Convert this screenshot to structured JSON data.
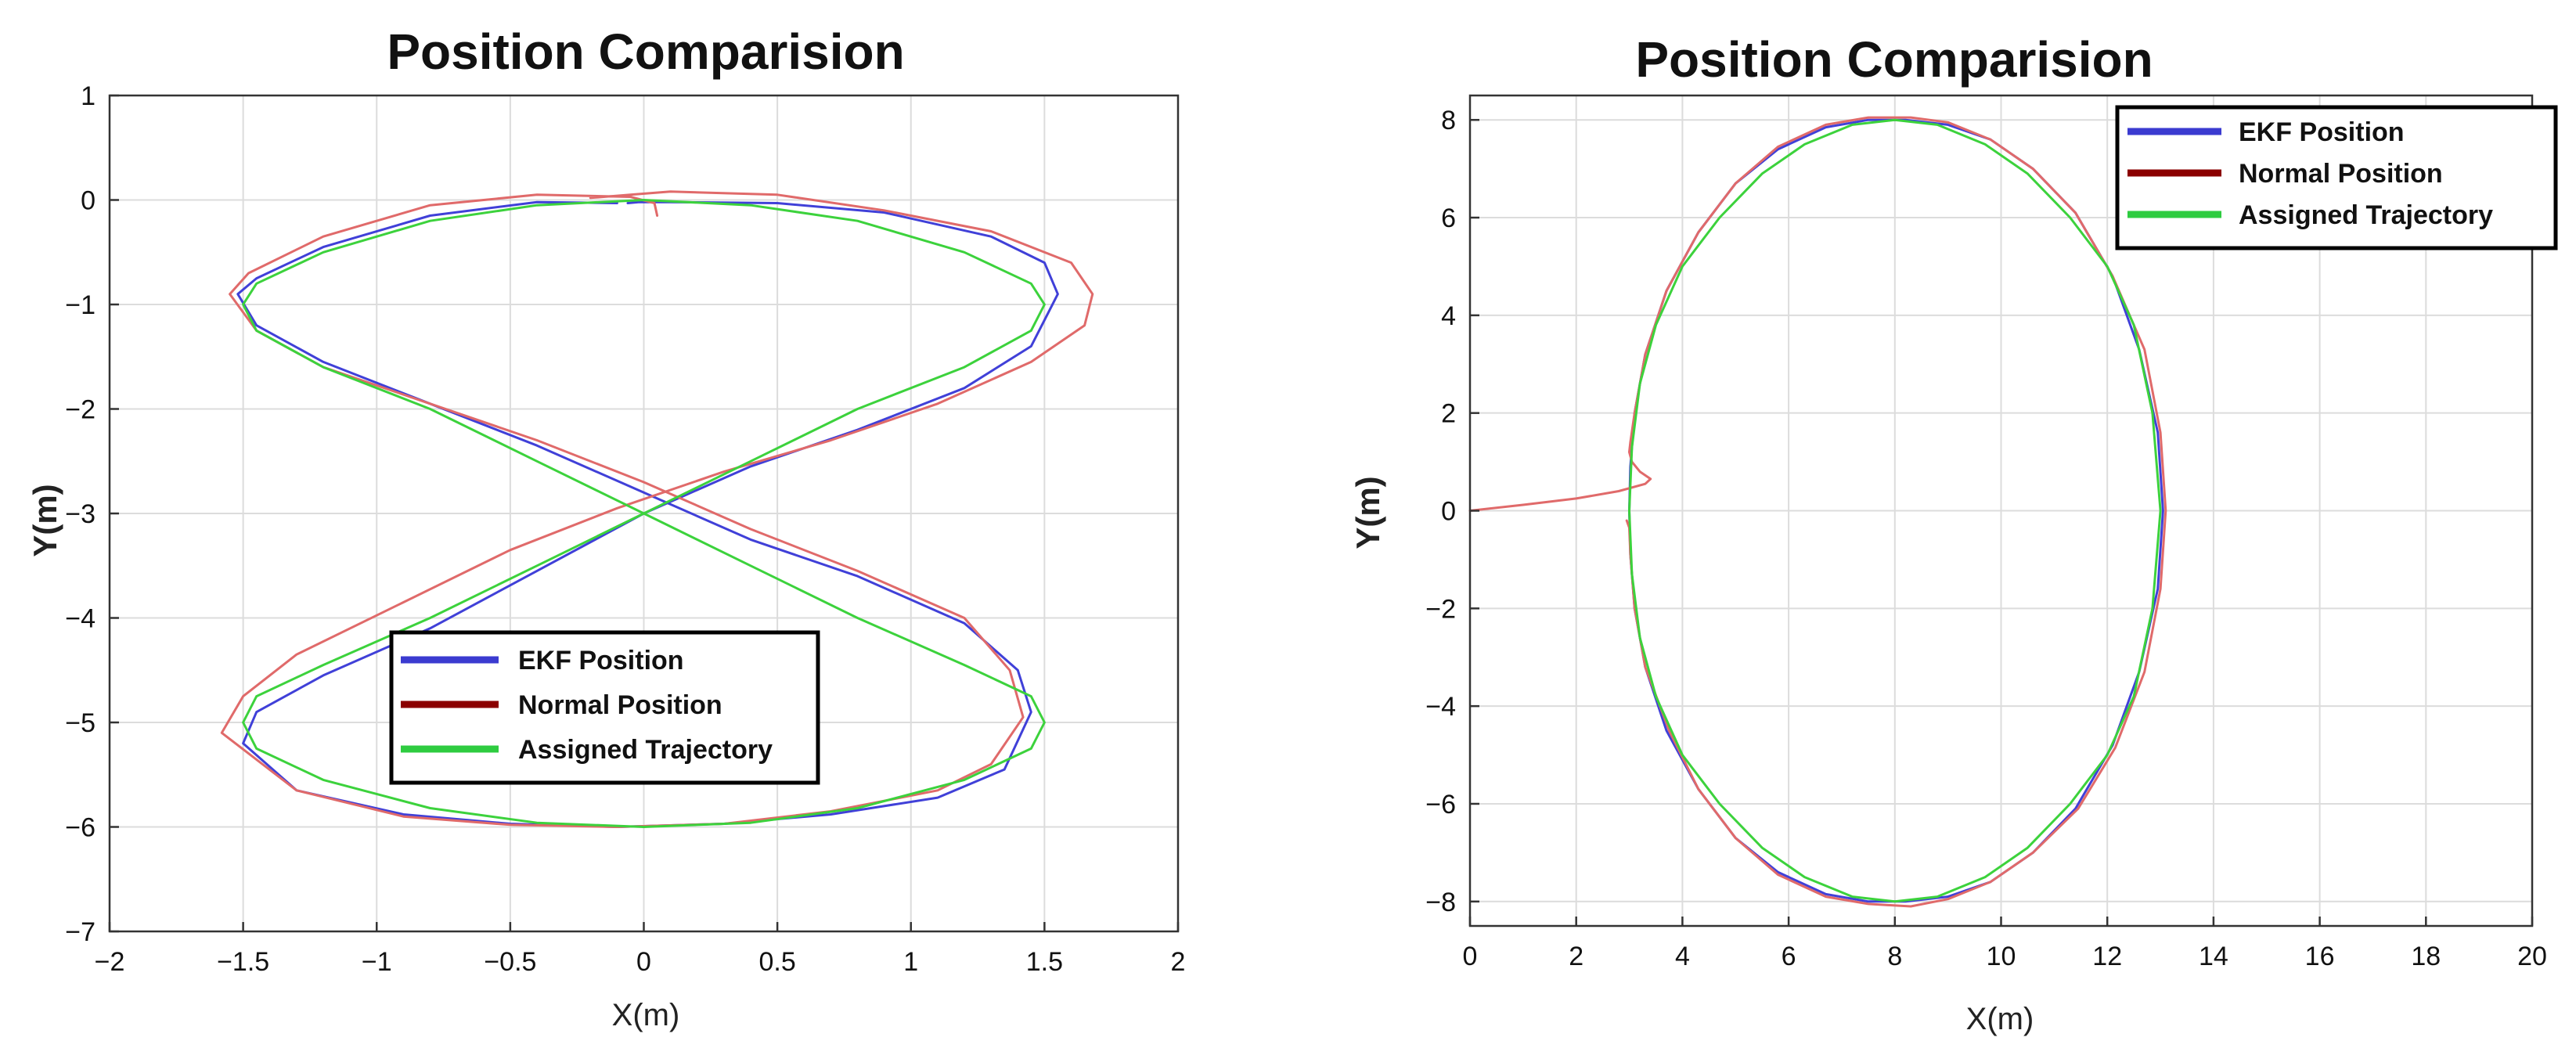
{
  "chart_data": [
    {
      "type": "line",
      "title": "Position Comparision",
      "xlabel": "X(m)",
      "ylabel": "Y(m)",
      "xlim": [
        -2,
        2
      ],
      "ylim": [
        -7,
        1
      ],
      "xticks": [
        -2,
        -1.5,
        -1,
        -0.5,
        0,
        0.5,
        1,
        1.5,
        2
      ],
      "xtick_labels": [
        "−2",
        "−1.5",
        "−1",
        "−0.5",
        "0",
        "0.5",
        "1",
        "1.5",
        "2"
      ],
      "yticks": [
        1,
        0,
        -1,
        -2,
        -3,
        -4,
        -5,
        -6,
        -7
      ],
      "ytick_labels": [
        "1",
        "0",
        "−1",
        "−2",
        "−3",
        "−4",
        "−5",
        "−6",
        "−7"
      ],
      "grid": true,
      "legend_position": "lower-center",
      "series": [
        {
          "name": "EKF Position",
          "color": "#4040d8",
          "x": [
            -0.1,
            -0.4,
            -0.8,
            -1.2,
            -1.45,
            -1.52,
            -1.45,
            -1.2,
            -0.8,
            -0.4,
            0.0,
            0.4,
            0.8,
            1.2,
            1.4,
            1.45,
            1.35,
            1.1,
            0.7,
            0.3,
            -0.1,
            -0.5,
            -0.9,
            -1.3,
            -1.5,
            -1.45,
            -1.2,
            -0.8,
            -0.4,
            0.0,
            0.4,
            0.8,
            1.2,
            1.45,
            1.55,
            1.5,
            1.3,
            0.9,
            0.5,
            0.1,
            -0.02,
            -0.06
          ],
          "y": [
            -0.03,
            -0.02,
            -0.15,
            -0.45,
            -0.75,
            -0.9,
            -1.2,
            -1.55,
            -1.95,
            -2.35,
            -2.8,
            -3.25,
            -3.6,
            -4.05,
            -4.5,
            -4.9,
            -5.45,
            -5.72,
            -5.88,
            -5.97,
            -6.0,
            -5.97,
            -5.88,
            -5.65,
            -5.2,
            -4.9,
            -4.55,
            -4.1,
            -3.55,
            -3.0,
            -2.55,
            -2.2,
            -1.8,
            -1.4,
            -0.9,
            -0.6,
            -0.35,
            -0.12,
            -0.03,
            -0.02,
            -0.02,
            -0.03
          ]
        },
        {
          "name": "Normal Position",
          "color": "#e06a6a",
          "x": [
            0.05,
            0.04,
            -0.05,
            -0.4,
            -0.8,
            -1.2,
            -1.48,
            -1.55,
            -1.45,
            -1.2,
            -0.8,
            -0.4,
            0.0,
            0.4,
            0.8,
            1.2,
            1.37,
            1.42,
            1.3,
            1.1,
            0.7,
            0.3,
            -0.1,
            -0.5,
            -0.9,
            -1.3,
            -1.58,
            -1.5,
            -1.3,
            -0.9,
            -0.5,
            -0.1,
            0.3,
            0.7,
            1.1,
            1.45,
            1.65,
            1.68,
            1.6,
            1.3,
            0.9,
            0.5,
            0.1,
            -0.05,
            -0.2
          ],
          "y": [
            -0.15,
            -0.03,
            0.03,
            0.05,
            -0.05,
            -0.35,
            -0.7,
            -0.9,
            -1.25,
            -1.6,
            -1.95,
            -2.3,
            -2.7,
            -3.15,
            -3.55,
            -4.0,
            -4.5,
            -4.95,
            -5.4,
            -5.65,
            -5.85,
            -5.97,
            -6.0,
            -5.98,
            -5.9,
            -5.65,
            -5.1,
            -4.75,
            -4.35,
            -3.85,
            -3.35,
            -2.95,
            -2.6,
            -2.3,
            -1.95,
            -1.55,
            -1.2,
            -0.9,
            -0.6,
            -0.3,
            -0.1,
            0.05,
            0.08,
            0.05,
            0.02
          ]
        },
        {
          "name": "Assigned Trajectory",
          "color": "#3cd23c",
          "x": [
            0.0,
            -0.4,
            -0.8,
            -1.2,
            -1.45,
            -1.5,
            -1.45,
            -1.2,
            -0.8,
            -0.4,
            0.0,
            0.4,
            0.8,
            1.2,
            1.45,
            1.5,
            1.45,
            1.2,
            0.8,
            0.4,
            0.0,
            -0.4,
            -0.8,
            -1.2,
            -1.45,
            -1.5,
            -1.45,
            -1.2,
            -0.8,
            -0.4,
            0.0,
            0.4,
            0.8,
            1.2,
            1.45,
            1.5,
            1.45,
            1.2,
            0.8,
            0.4,
            0.0
          ],
          "y": [
            -0.0,
            -0.05,
            -0.2,
            -0.5,
            -0.8,
            -1.0,
            -1.25,
            -1.6,
            -2.0,
            -2.5,
            -3.0,
            -3.5,
            -4.0,
            -4.45,
            -4.75,
            -5.0,
            -5.25,
            -5.55,
            -5.82,
            -5.96,
            -6.0,
            -5.96,
            -5.82,
            -5.55,
            -5.25,
            -5.0,
            -4.75,
            -4.45,
            -4.0,
            -3.5,
            -3.0,
            -2.5,
            -2.0,
            -1.6,
            -1.25,
            -1.0,
            -0.8,
            -0.5,
            -0.2,
            -0.05,
            0.0
          ]
        }
      ]
    },
    {
      "type": "line",
      "title": "Position Comparision",
      "xlabel": "X(m)",
      "ylabel": "Y(m)",
      "xlim": [
        0,
        20
      ],
      "ylim": [
        -8.5,
        8.5
      ],
      "xticks": [
        0,
        2,
        4,
        6,
        8,
        10,
        12,
        14,
        16,
        18,
        20
      ],
      "xtick_labels": [
        "0",
        "2",
        "4",
        "6",
        "8",
        "10",
        "12",
        "14",
        "16",
        "18",
        "20"
      ],
      "yticks": [
        8,
        6,
        4,
        2,
        0,
        -2,
        -4,
        -6,
        -8
      ],
      "ytick_labels": [
        "8",
        "6",
        "4",
        "2",
        "0",
        "−2",
        "−4",
        "−6",
        "−8"
      ],
      "grid": true,
      "legend_position": "top-right",
      "series": [
        {
          "name": "EKF Position",
          "color": "#4040d8",
          "x": [
            3.0,
            3.02,
            3.1,
            3.3,
            3.7,
            4.3,
            5.0,
            5.8,
            6.7,
            7.5,
            8.2,
            9.0,
            9.8,
            10.6,
            11.4,
            12.1,
            12.6,
            12.95,
            13.05,
            12.95,
            12.6,
            12.1,
            11.4,
            10.6,
            9.8,
            9.0,
            8.2,
            7.5,
            6.7,
            5.8,
            5.0,
            4.3,
            3.7,
            3.3,
            3.1,
            3.02,
            3.0
          ],
          "y": [
            0.0,
            0.9,
            2.0,
            3.2,
            4.5,
            5.7,
            6.7,
            7.4,
            7.85,
            8.0,
            8.0,
            7.9,
            7.6,
            7.0,
            6.1,
            4.8,
            3.3,
            1.6,
            0.0,
            -1.6,
            -3.3,
            -4.8,
            -6.1,
            -7.0,
            -7.6,
            -7.9,
            -8.0,
            -8.0,
            -7.85,
            -7.4,
            -6.7,
            -5.7,
            -4.5,
            -3.2,
            -2.0,
            -0.9,
            0.0
          ]
        },
        {
          "name": "Normal Position",
          "color": "#e06a6a",
          "x": [
            0.0,
            1.0,
            2.0,
            2.8,
            3.3,
            3.4,
            3.2,
            3.05,
            3.0,
            3.02,
            3.1,
            3.3,
            3.7,
            4.3,
            5.0,
            5.8,
            6.7,
            7.5,
            8.3,
            9.0,
            9.8,
            10.6,
            11.4,
            12.1,
            12.7,
            13.0,
            13.1,
            13.0,
            12.7,
            12.15,
            11.45,
            10.6,
            9.8,
            9.0,
            8.3,
            7.5,
            6.7,
            5.8,
            5.0,
            4.3,
            3.75,
            3.3,
            3.1,
            3.02,
            3.0,
            2.95
          ],
          "y": [
            0.0,
            0.12,
            0.25,
            0.4,
            0.55,
            0.65,
            0.8,
            1.0,
            1.2,
            1.4,
            2.0,
            3.2,
            4.5,
            5.7,
            6.7,
            7.45,
            7.9,
            8.05,
            8.05,
            7.95,
            7.6,
            7.0,
            6.1,
            4.8,
            3.3,
            1.6,
            0.0,
            -1.6,
            -3.3,
            -4.85,
            -6.1,
            -7.0,
            -7.6,
            -7.95,
            -8.1,
            -8.05,
            -7.9,
            -7.45,
            -6.7,
            -5.7,
            -4.5,
            -3.2,
            -2.0,
            -0.9,
            -0.35,
            -0.2
          ]
        },
        {
          "name": "Assigned Trajectory",
          "color": "#3cd23c",
          "x": [
            3.0,
            3.05,
            3.2,
            3.5,
            4.0,
            4.7,
            5.5,
            6.3,
            7.2,
            8.0,
            8.8,
            9.7,
            10.5,
            11.3,
            12.0,
            12.5,
            12.85,
            13.0,
            12.85,
            12.5,
            12.0,
            11.3,
            10.5,
            9.7,
            8.8,
            8.0,
            7.2,
            6.3,
            5.5,
            4.7,
            4.0,
            3.5,
            3.2,
            3.05,
            3.0
          ],
          "y": [
            0.0,
            1.3,
            2.6,
            3.8,
            5.0,
            6.0,
            6.9,
            7.5,
            7.9,
            8.0,
            7.9,
            7.5,
            6.9,
            6.0,
            5.0,
            3.8,
            2.0,
            0.0,
            -2.0,
            -3.8,
            -5.0,
            -6.0,
            -6.9,
            -7.5,
            -7.9,
            -8.0,
            -7.9,
            -7.5,
            -6.9,
            -6.0,
            -5.0,
            -3.8,
            -2.6,
            -1.3,
            0.0
          ]
        }
      ]
    }
  ]
}
